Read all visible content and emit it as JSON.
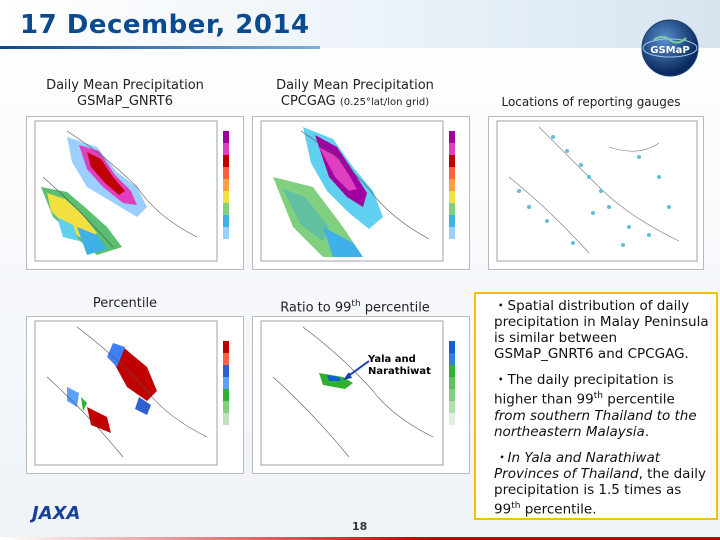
{
  "slide": {
    "title": "17 December, 2014",
    "page_number": "18"
  },
  "panels": {
    "gsmap": {
      "line1": "Daily Mean Precipitation",
      "line2": "GSMaP_GNRT6"
    },
    "cpcgag": {
      "line1": "Daily Mean Precipitation",
      "line2": "CPCGAG",
      "small": "(0.25°lat/lon grid)"
    },
    "gauges": {
      "caption": "Locations of reporting gauges"
    },
    "percentile": {
      "caption": "Percentile"
    },
    "ratio": {
      "caption_pre": "Ratio to 99",
      "caption_sup": "th",
      "caption_post": " percentile"
    }
  },
  "annotation": {
    "line1": "Yala and",
    "line2": "Narathiwat"
  },
  "notes": {
    "p1": "・Spatial distribution of daily precipitation in Malay Peninsula is similar between GSMaP_GNRT6 and CPCGAG.",
    "p2_a": "・The daily precipitation is higher than 99",
    "p2_sup": "th",
    "p2_b": " percentile",
    "p2_c": "from southern Thailand to the northeastern Malaysia",
    "p2_d": ".",
    "p3_a": "・In Yala and Narathiwat Provinces of Thailand",
    "p3_b": ", the daily precipitation is 1.5 times as 99",
    "p3_sup": "th",
    "p3_c": " percentile."
  },
  "logos": {
    "gsmap": "GSMaP",
    "jaxa": "JAXA"
  },
  "icons": [
    "gsmap-globe-icon",
    "jaxa-logo-icon"
  ],
  "colors": {
    "title": "#0b4a8f",
    "notes_border": "#f2c200",
    "footer_line": "#c00000"
  }
}
